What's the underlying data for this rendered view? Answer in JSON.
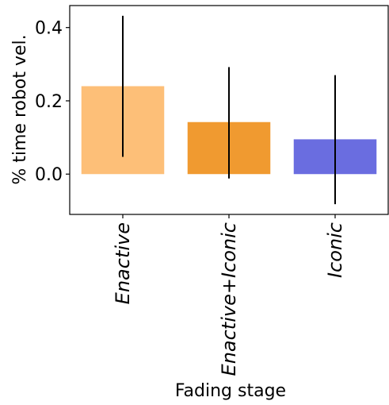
{
  "chart_data": {
    "type": "bar",
    "categories": [
      "Enactive",
      "Enactive+Iconic",
      "Iconic"
    ],
    "values": [
      0.24,
      0.142,
      0.095
    ],
    "error_low": [
      0.047,
      -0.012,
      -0.082
    ],
    "error_high": [
      0.432,
      0.292,
      0.27
    ],
    "bar_colors": [
      "#FDBF78",
      "#F09A30",
      "#6A6DE0"
    ],
    "xlabel": "Fading stage",
    "ylabel": "% time robot vel.",
    "ylim": [
      -0.11,
      0.46
    ],
    "yticks": [
      0.0,
      0.2,
      0.4
    ],
    "ytick_labels": [
      "0.0",
      "0.2",
      "0.4"
    ],
    "grid": false,
    "category_label_style": "italic, rotated 90°"
  }
}
